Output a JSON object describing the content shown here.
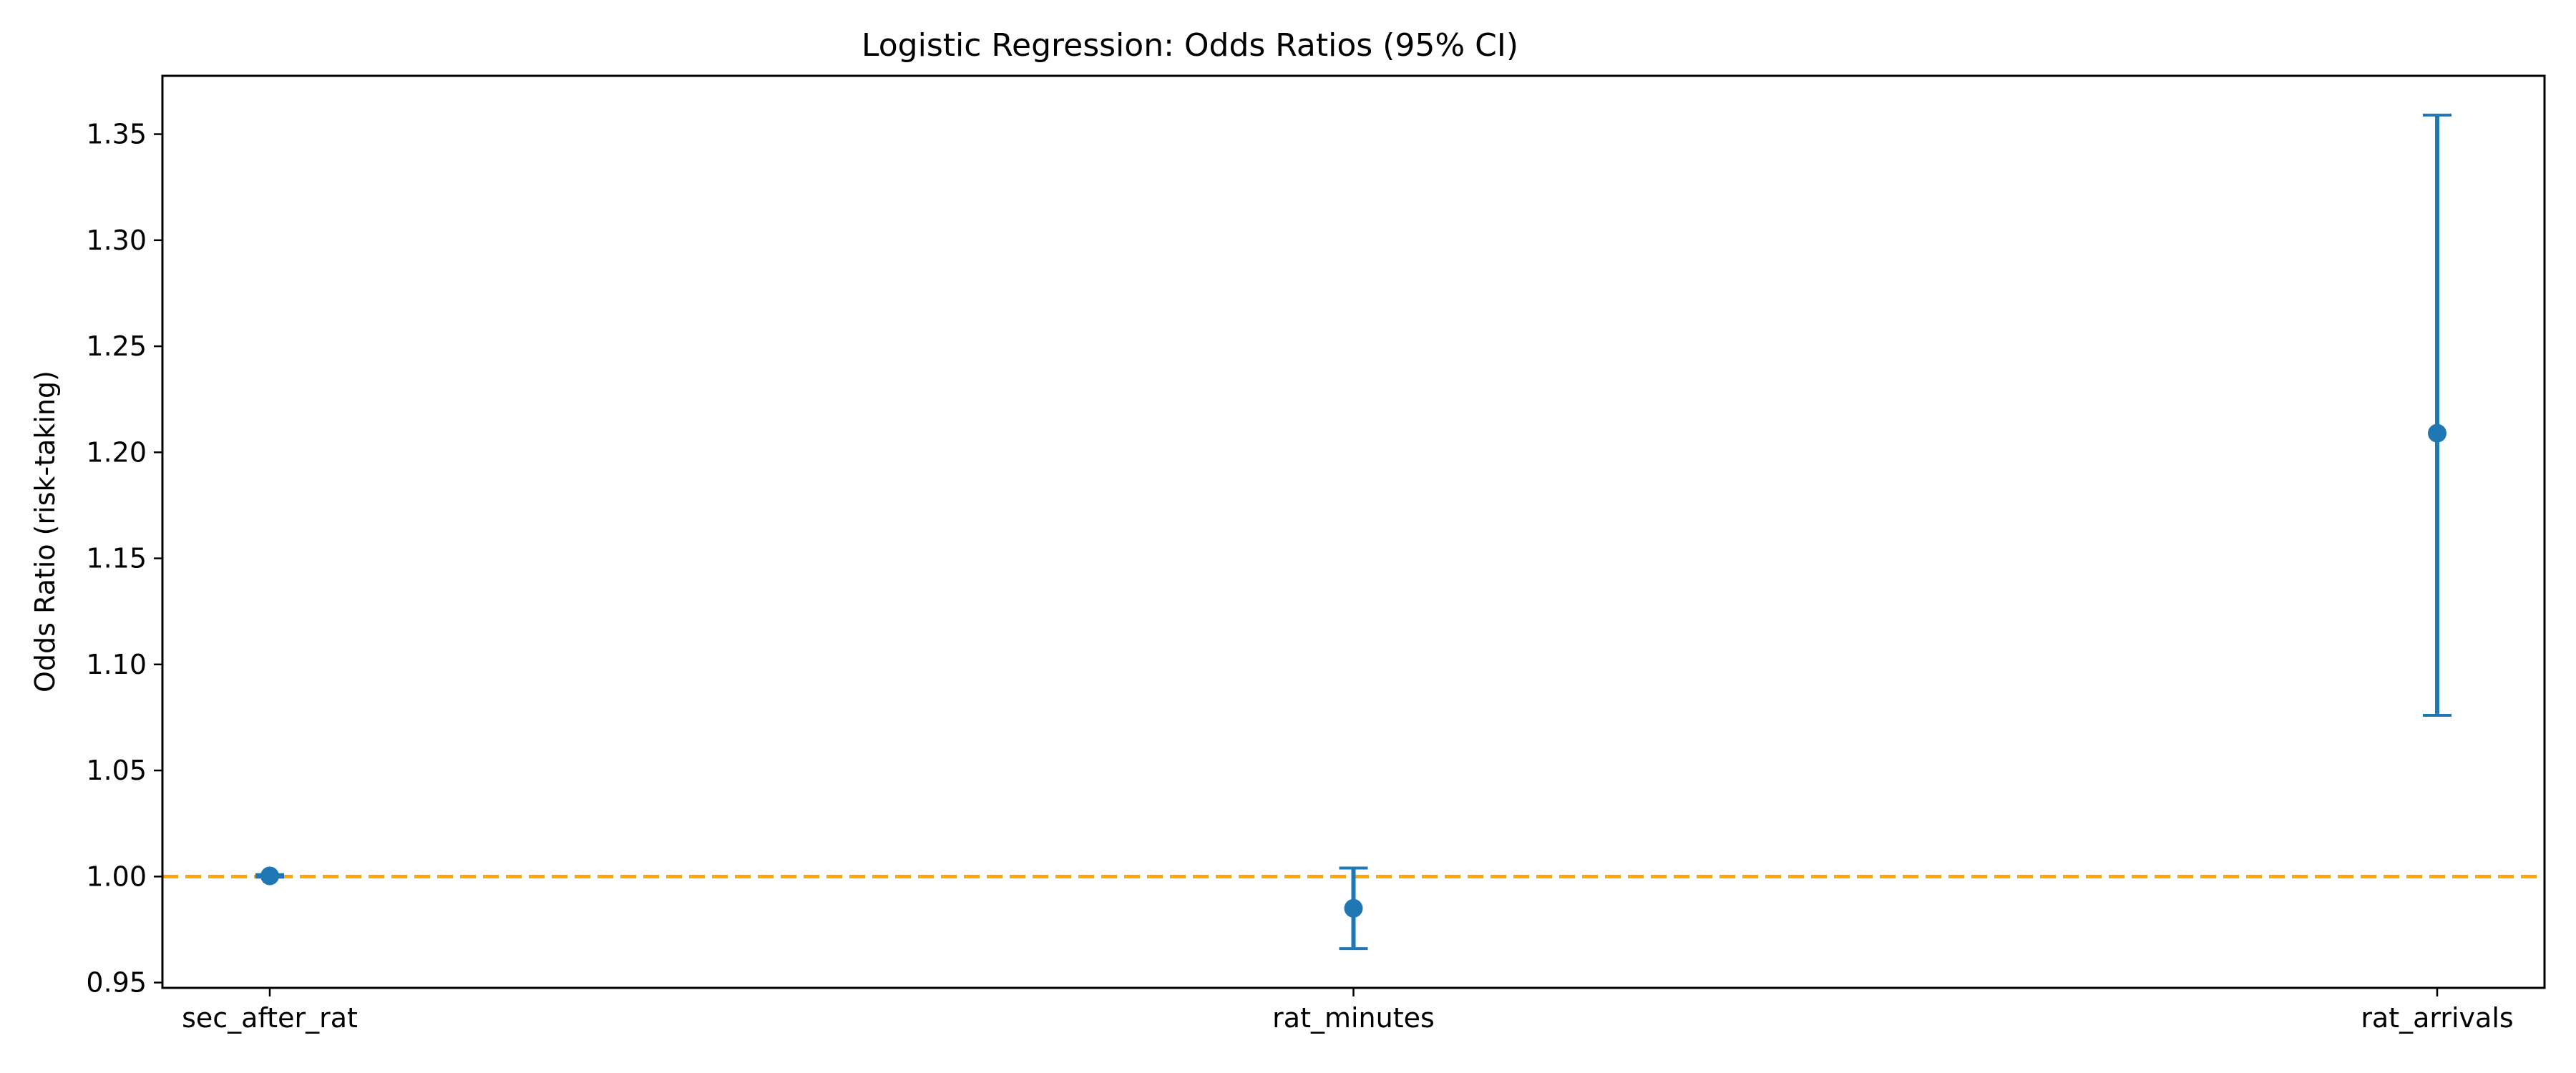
{
  "chart_data": {
    "type": "scatter",
    "title": "Logistic Regression: Odds Ratios (95% CI)",
    "xlabel": "",
    "ylabel": "Odds Ratio (risk-taking)",
    "categories": [
      "sec_after_rat",
      "rat_minutes",
      "rat_arrivals"
    ],
    "points": [
      {
        "label": "sec_after_rat",
        "or": 1.0003,
        "ci_low": 0.9997,
        "ci_high": 1.0009
      },
      {
        "label": "rat_minutes",
        "or": 0.985,
        "ci_low": 0.966,
        "ci_high": 1.004
      },
      {
        "label": "rat_arrivals",
        "or": 1.209,
        "ci_low": 1.076,
        "ci_high": 1.359
      }
    ],
    "ylim": [
      0.9475,
      1.3775
    ],
    "yticks": [
      "0.95",
      "1.00",
      "1.05",
      "1.10",
      "1.15",
      "1.20",
      "1.25",
      "1.30",
      "1.35"
    ],
    "reference_line": {
      "y": 1.0,
      "style": "dashed",
      "color": "#ffa500"
    },
    "marker_color": "#1f77b4",
    "grid": false,
    "legend": "none"
  }
}
